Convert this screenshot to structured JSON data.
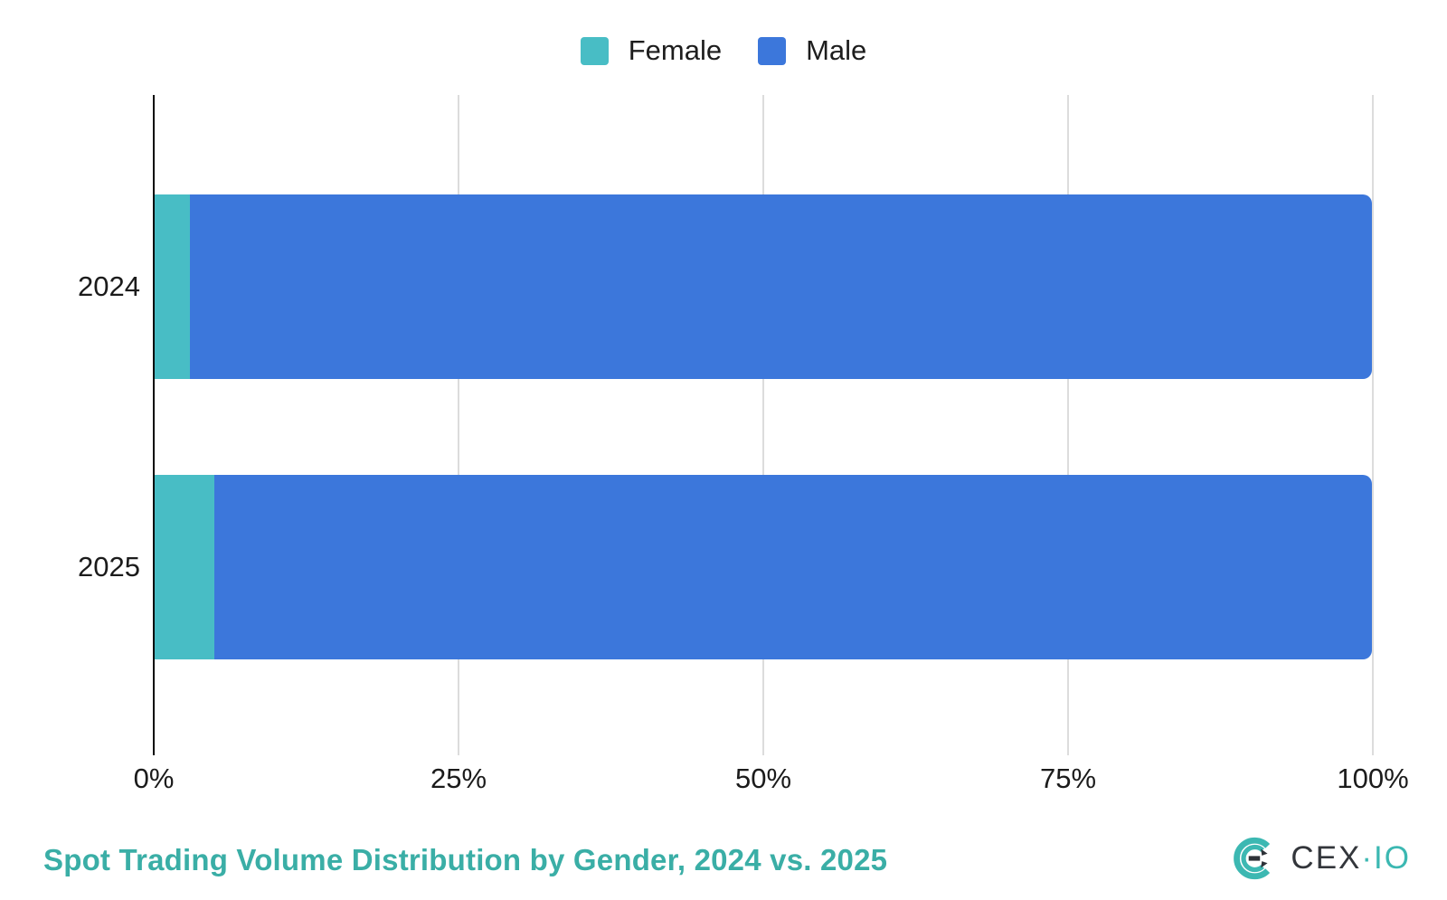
{
  "chart_data": {
    "type": "bar",
    "orientation": "horizontal",
    "stacked": true,
    "title": "Spot Trading Volume Distribution by Gender, 2024 vs. 2025",
    "categories": [
      "2024",
      "2025"
    ],
    "series": [
      {
        "name": "Female",
        "color": "#48bdc5",
        "values": [
          3,
          5
        ]
      },
      {
        "name": "Male",
        "color": "#3c77db",
        "values": [
          97,
          95
        ]
      }
    ],
    "xlim": [
      0,
      100
    ],
    "x_tick_labels": [
      "0%",
      "25%",
      "50%",
      "75%",
      "100%"
    ],
    "x_tick_positions_pct": [
      0,
      25,
      50,
      75,
      100
    ],
    "legend_position": "top",
    "grid": "vertical"
  },
  "colors": {
    "female": "#48bdc5",
    "male": "#3c77db",
    "gridline": "#dcdcdc",
    "axis": "#0a0a0a",
    "title_teal": "#3aaea6",
    "brand_teal": "#3cb8b2",
    "brand_dark": "#33363b"
  },
  "footer": {
    "brand_text_primary": "CEX",
    "brand_text_secondary": "·IO"
  }
}
